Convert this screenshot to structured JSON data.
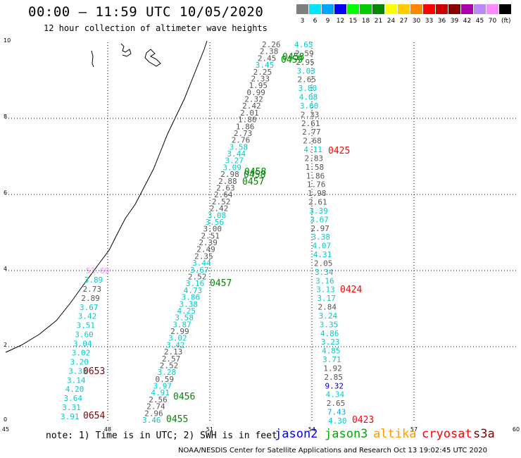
{
  "title": "00:00 – 11:59 UTC 10/05/2020",
  "subtitle": "12 hour collection of altimeter wave heights",
  "legend": {
    "unit": "(ft)",
    "items": [
      {
        "label": "3",
        "color": "#7f7f7f"
      },
      {
        "label": "6",
        "color": "#00e5ff"
      },
      {
        "label": "9",
        "color": "#00a5ff"
      },
      {
        "label": "12",
        "color": "#0000ff"
      },
      {
        "label": "15",
        "color": "#00ff00"
      },
      {
        "label": "18",
        "color": "#00cc00"
      },
      {
        "label": "21",
        "color": "#008800"
      },
      {
        "label": "24",
        "color": "#ffff00"
      },
      {
        "label": "27",
        "color": "#ffcc00"
      },
      {
        "label": "30",
        "color": "#ff8800"
      },
      {
        "label": "33",
        "color": "#ff0000"
      },
      {
        "label": "36",
        "color": "#cc0000"
      },
      {
        "label": "39",
        "color": "#880000"
      },
      {
        "label": "42",
        "color": "#aa00aa"
      },
      {
        "label": "45",
        "color": "#bb88ff"
      },
      {
        "label": "70",
        "color": "#ff88ff"
      },
      {
        "label": "",
        "color": "#000000"
      }
    ]
  },
  "map": {
    "x_ticks": [
      "45",
      "48",
      "51",
      "54",
      "57",
      "60"
    ],
    "y_ticks": [
      "0",
      "2",
      "4",
      "6",
      "8",
      "10"
    ],
    "passes": [
      {
        "label": "0653",
        "color": "#800000"
      },
      {
        "label": "0654",
        "color": "#800000"
      },
      {
        "label": "0455",
        "color": "#008800"
      },
      {
        "label": "0456",
        "color": "#008800"
      },
      {
        "label": "0457",
        "color": "#008800"
      },
      {
        "label": "0457",
        "color": "#008800"
      },
      {
        "label": "0458",
        "color": "#008800"
      },
      {
        "label": "0458",
        "color": "#008800"
      },
      {
        "label": "0459",
        "color": "#008800"
      },
      {
        "label": "0458",
        "color": "#008800"
      },
      {
        "label": "0423",
        "color": "#ff0000"
      },
      {
        "label": "0424",
        "color": "#ff0000"
      },
      {
        "label": "0425",
        "color": "#ff0000"
      }
    ],
    "track_a": [
      {
        "v": "3.91",
        "c": "#00cccc"
      },
      {
        "v": "3.31",
        "c": "#00cccc"
      },
      {
        "v": "3.64",
        "c": "#00cccc"
      },
      {
        "v": "4.20",
        "c": "#00cccc"
      },
      {
        "v": "3.14",
        "c": "#00cccc"
      },
      {
        "v": "3.33",
        "c": "#00cccc"
      },
      {
        "v": "3.20",
        "c": "#00cccc"
      },
      {
        "v": "3.02",
        "c": "#00cccc"
      },
      {
        "v": "3.04",
        "c": "#00cccc"
      },
      {
        "v": "3.60",
        "c": "#00cccc"
      },
      {
        "v": "3.51",
        "c": "#00cccc"
      },
      {
        "v": "3.42",
        "c": "#00cccc"
      },
      {
        "v": "3.67",
        "c": "#00cccc"
      },
      {
        "v": "2.89",
        "c": "#555555"
      },
      {
        "v": "2.73",
        "c": "#555555"
      },
      {
        "v": "3.89",
        "c": "#00cccc"
      },
      {
        "v": "53.69",
        "c": "#ff88ff"
      }
    ],
    "track_b": [
      {
        "v": "3.46",
        "c": "#00cccc"
      },
      {
        "v": "2.96",
        "c": "#555555"
      },
      {
        "v": "2.74",
        "c": "#555555"
      },
      {
        "v": "2.56",
        "c": "#555555"
      },
      {
        "v": "4.91",
        "c": "#00cccc"
      },
      {
        "v": "3.97",
        "c": "#00cccc"
      },
      {
        "v": "0.59",
        "c": "#555555"
      },
      {
        "v": "3.28",
        "c": "#00cccc"
      },
      {
        "v": "2.52",
        "c": "#555555"
      },
      {
        "v": "2.57",
        "c": "#555555"
      },
      {
        "v": "2.13",
        "c": "#555555"
      },
      {
        "v": "3.42",
        "c": "#00cccc"
      },
      {
        "v": "3.02",
        "c": "#00cccc"
      },
      {
        "v": "2.99",
        "c": "#555555"
      },
      {
        "v": "3.87",
        "c": "#00cccc"
      },
      {
        "v": "3.58",
        "c": "#00cccc"
      },
      {
        "v": "4.25",
        "c": "#00cccc"
      },
      {
        "v": "3.38",
        "c": "#00cccc"
      },
      {
        "v": "3.86",
        "c": "#00cccc"
      },
      {
        "v": "4.73",
        "c": "#00cccc"
      },
      {
        "v": "3.16",
        "c": "#00cccc"
      },
      {
        "v": "2.52",
        "c": "#555555"
      },
      {
        "v": "3.67",
        "c": "#00cccc"
      },
      {
        "v": "3.44",
        "c": "#00cccc"
      },
      {
        "v": "2.35",
        "c": "#555555"
      },
      {
        "v": "2.49",
        "c": "#555555"
      },
      {
        "v": "2.39",
        "c": "#555555"
      },
      {
        "v": "2.51",
        "c": "#555555"
      },
      {
        "v": "3.00",
        "c": "#555555"
      },
      {
        "v": "3.56",
        "c": "#00cccc"
      },
      {
        "v": "3.08",
        "c": "#00cccc"
      },
      {
        "v": "2.42",
        "c": "#555555"
      },
      {
        "v": "2.52",
        "c": "#555555"
      },
      {
        "v": "2.64",
        "c": "#555555"
      },
      {
        "v": "2.63",
        "c": "#555555"
      },
      {
        "v": "2.88",
        "c": "#555555"
      },
      {
        "v": "2.98",
        "c": "#555555"
      },
      {
        "v": "3.09",
        "c": "#00cccc"
      },
      {
        "v": "3.27",
        "c": "#00cccc"
      },
      {
        "v": "3.44",
        "c": "#00cccc"
      },
      {
        "v": "3.58",
        "c": "#00cccc"
      },
      {
        "v": "2.76",
        "c": "#555555"
      },
      {
        "v": "2.73",
        "c": "#555555"
      },
      {
        "v": "1.86",
        "c": "#555555"
      },
      {
        "v": "1.80",
        "c": "#555555"
      },
      {
        "v": "2.01",
        "c": "#555555"
      },
      {
        "v": "2.42",
        "c": "#555555"
      },
      {
        "v": "2.32",
        "c": "#555555"
      },
      {
        "v": "0.99",
        "c": "#555555"
      },
      {
        "v": "1.95",
        "c": "#555555"
      },
      {
        "v": "2.33",
        "c": "#555555"
      },
      {
        "v": "2.25",
        "c": "#555555"
      },
      {
        "v": "3.45",
        "c": "#00cccc"
      },
      {
        "v": "2.45",
        "c": "#555555"
      },
      {
        "v": "2.38",
        "c": "#555555"
      },
      {
        "v": "2.26",
        "c": "#555555"
      }
    ],
    "track_c": [
      {
        "v": "4.30",
        "c": "#00cccc"
      },
      {
        "v": "7.43",
        "c": "#00a5ff"
      },
      {
        "v": "2.65",
        "c": "#555555"
      },
      {
        "v": "4.34",
        "c": "#00cccc"
      },
      {
        "v": "9.32",
        "c": "#0000cc"
      },
      {
        "v": "2.85",
        "c": "#555555"
      },
      {
        "v": "1.92",
        "c": "#555555"
      },
      {
        "v": "3.71",
        "c": "#00cccc"
      },
      {
        "v": "4.85",
        "c": "#00cccc"
      },
      {
        "v": "3.23",
        "c": "#00cccc"
      },
      {
        "v": "4.86",
        "c": "#00cccc"
      },
      {
        "v": "3.35",
        "c": "#00cccc"
      },
      {
        "v": "3.24",
        "c": "#00cccc"
      },
      {
        "v": "2.84",
        "c": "#555555"
      },
      {
        "v": "3.17",
        "c": "#00cccc"
      },
      {
        "v": "3.13",
        "c": "#00cccc"
      },
      {
        "v": "3.16",
        "c": "#00cccc"
      },
      {
        "v": "3.34",
        "c": "#00cccc"
      },
      {
        "v": "2.05",
        "c": "#555555"
      },
      {
        "v": "4.31",
        "c": "#00cccc"
      },
      {
        "v": "4.07",
        "c": "#00cccc"
      },
      {
        "v": "3.38",
        "c": "#00cccc"
      },
      {
        "v": "2.97",
        "c": "#555555"
      },
      {
        "v": "3.67",
        "c": "#00cccc"
      },
      {
        "v": "3.39",
        "c": "#00cccc"
      },
      {
        "v": "2.61",
        "c": "#555555"
      },
      {
        "v": "1.98",
        "c": "#555555"
      },
      {
        "v": "1.76",
        "c": "#555555"
      },
      {
        "v": "1.86",
        "c": "#555555"
      },
      {
        "v": "1.58",
        "c": "#555555"
      },
      {
        "v": "2.83",
        "c": "#555555"
      },
      {
        "v": "4.11",
        "c": "#00cccc"
      },
      {
        "v": "2.68",
        "c": "#555555"
      },
      {
        "v": "2.77",
        "c": "#555555"
      },
      {
        "v": "2.61",
        "c": "#555555"
      },
      {
        "v": "2.33",
        "c": "#555555"
      },
      {
        "v": "3.60",
        "c": "#00cccc"
      },
      {
        "v": "4.08",
        "c": "#00cccc"
      },
      {
        "v": "3.80",
        "c": "#00cccc"
      },
      {
        "v": "2.65",
        "c": "#555555"
      },
      {
        "v": "3.03",
        "c": "#00cccc"
      },
      {
        "v": "2.95",
        "c": "#555555"
      },
      {
        "v": "2.59",
        "c": "#555555"
      },
      {
        "v": "4.65",
        "c": "#00cccc"
      }
    ]
  },
  "note": "note: 1) Time is in UTC; 2) SWH is in feet",
  "satellites": [
    {
      "name": "jason2",
      "color": "#0000ff"
    },
    {
      "name": "jason3",
      "color": "#00aa00"
    },
    {
      "name": "altika",
      "color": "#ff9900"
    },
    {
      "name": "cryosat",
      "color": "#ff0000"
    },
    {
      "name": "s3a",
      "color": "#800000"
    }
  ],
  "credit": "NOAA/NESDIS Center for Satellite Applications and Research    Oct 13 19:02:45 UTC 2020"
}
